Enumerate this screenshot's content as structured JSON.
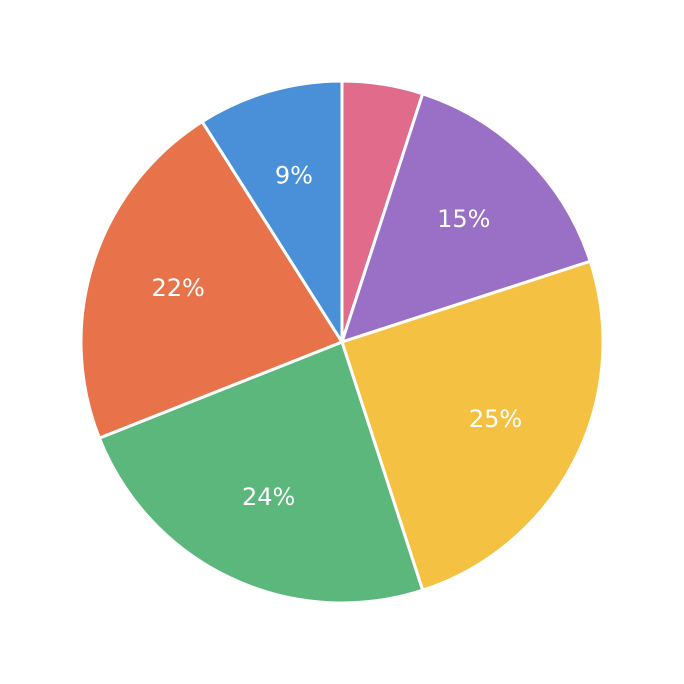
{
  "chart_data": {
    "type": "pie",
    "values": [
      5,
      15,
      25,
      24,
      22,
      9
    ],
    "value_labels": [
      null,
      "15%",
      "25%",
      "24%",
      "22%",
      "9%"
    ],
    "colors": [
      "#e06b8b",
      "#9a70c6",
      "#f4c142",
      "#5bb77c",
      "#e8734b",
      "#4a90d9"
    ]
  }
}
